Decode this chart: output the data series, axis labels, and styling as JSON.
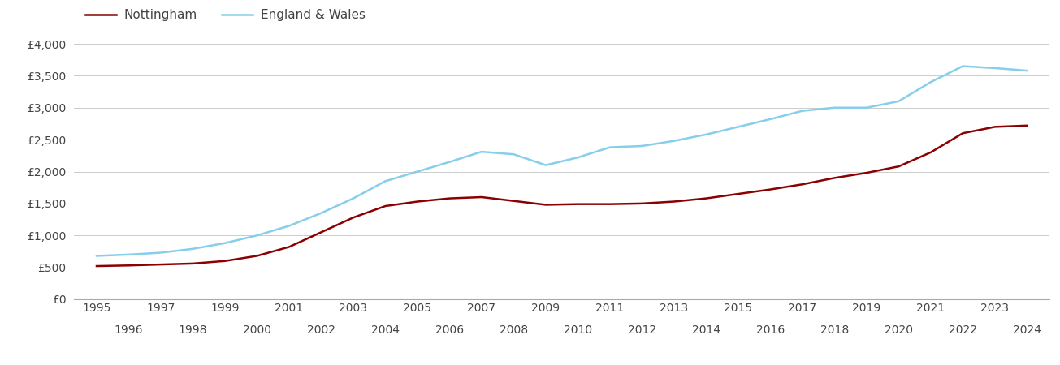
{
  "years": [
    1995,
    1996,
    1997,
    1998,
    1999,
    2000,
    2001,
    2002,
    2003,
    2004,
    2005,
    2006,
    2007,
    2008,
    2009,
    2010,
    2011,
    2012,
    2013,
    2014,
    2015,
    2016,
    2017,
    2018,
    2019,
    2020,
    2021,
    2022,
    2023,
    2024
  ],
  "nottingham": [
    520,
    530,
    545,
    560,
    600,
    680,
    820,
    1050,
    1280,
    1460,
    1530,
    1580,
    1600,
    1540,
    1480,
    1490,
    1490,
    1500,
    1530,
    1580,
    1650,
    1720,
    1800,
    1900,
    1980,
    2080,
    2300,
    2600,
    2700,
    2720
  ],
  "england_wales": [
    680,
    700,
    730,
    790,
    880,
    1000,
    1150,
    1350,
    1580,
    1850,
    2000,
    2150,
    2310,
    2270,
    2100,
    2220,
    2380,
    2400,
    2480,
    2580,
    2700,
    2820,
    2950,
    3000,
    3000,
    3100,
    3400,
    3650,
    3620,
    3580
  ],
  "nottingham_color": "#8b0000",
  "england_wales_color": "#87CEEB",
  "background_color": "#ffffff",
  "grid_color": "#cccccc",
  "ylim": [
    0,
    4000
  ],
  "yticks": [
    0,
    500,
    1000,
    1500,
    2000,
    2500,
    3000,
    3500,
    4000
  ],
  "ytick_labels": [
    "£0",
    "£500",
    "£1,000",
    "£1,500",
    "£2,000",
    "£2,500",
    "£3,000",
    "£3,500",
    "£4,000"
  ],
  "legend_nottingham": "Nottingham",
  "legend_england_wales": "England & Wales",
  "line_width": 1.8,
  "font_color": "#444444",
  "tick_fontsize": 10,
  "legend_fontsize": 11
}
